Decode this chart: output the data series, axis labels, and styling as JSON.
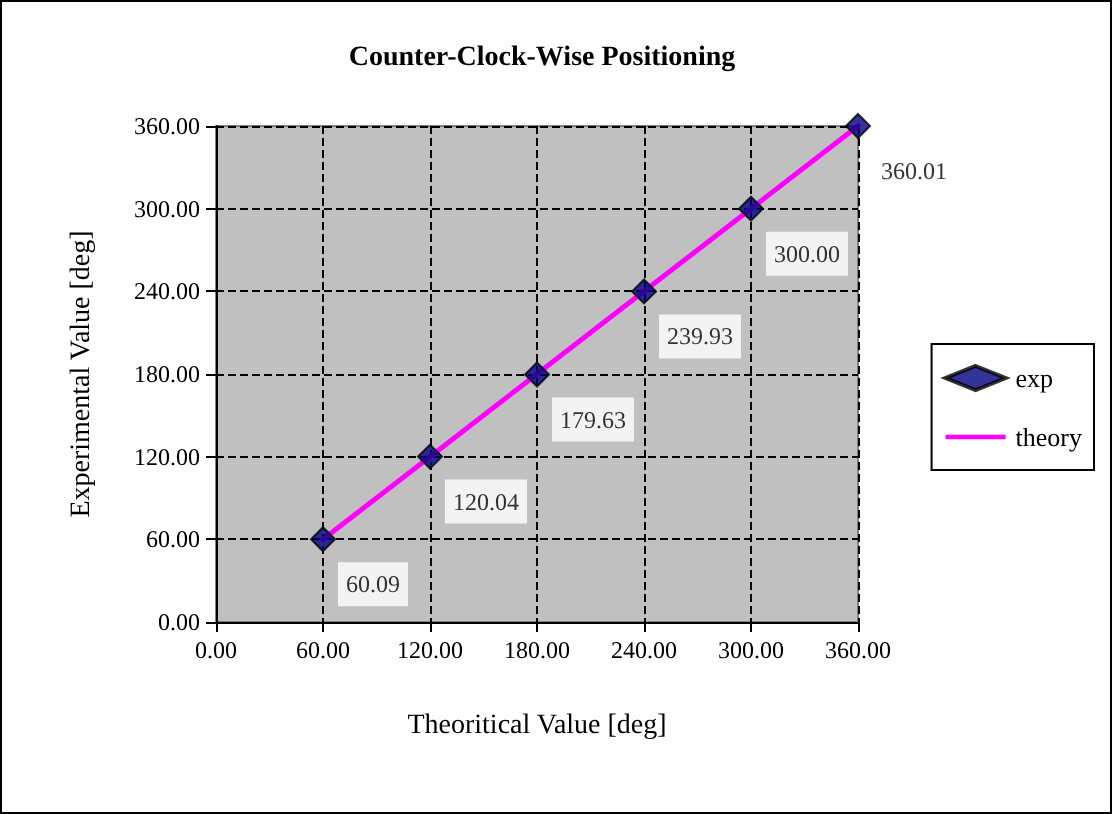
{
  "chart_data": {
    "type": "scatter",
    "title": "Counter-Clock-Wise Positioning",
    "xlabel": "Theoritical Value [deg]",
    "ylabel": "Experimental Value [deg]",
    "x": [
      60,
      120,
      180,
      240,
      300,
      360
    ],
    "series": [
      {
        "name": "exp",
        "color": "#000080",
        "marker": "diamond",
        "values": [
          60.09,
          120.04,
          179.63,
          239.93,
          300.0,
          360.01
        ],
        "value_labels": [
          "60.09",
          "120.04",
          "179.63",
          "239.93",
          "300.00",
          "360.01"
        ]
      },
      {
        "name": "theory",
        "type": "line",
        "color": "#ff00ff",
        "marker": "none",
        "line_style": "solid",
        "values": [
          60,
          120,
          180,
          240,
          300,
          360
        ]
      }
    ],
    "xlim": [
      0,
      360
    ],
    "ylim": [
      0,
      360.01
    ],
    "xticks": [
      {
        "value": 0,
        "label": "0.00"
      },
      {
        "value": 60,
        "label": "60.00"
      },
      {
        "value": 120,
        "label": "120.00"
      },
      {
        "value": 180,
        "label": "180.00"
      },
      {
        "value": 240,
        "label": "240.00"
      },
      {
        "value": 300,
        "label": "300.00"
      },
      {
        "value": 360,
        "label": "360.00"
      }
    ],
    "yticks": [
      {
        "value": 0,
        "label": "0.00"
      },
      {
        "value": 60,
        "label": "60.00"
      },
      {
        "value": 120,
        "label": "120.00"
      },
      {
        "value": 180,
        "label": "180.00"
      },
      {
        "value": 240,
        "label": "240.00"
      },
      {
        "value": 300,
        "label": "300.00"
      },
      {
        "value": 360,
        "label": "360.00"
      }
    ],
    "grid": true,
    "legend": "right"
  }
}
